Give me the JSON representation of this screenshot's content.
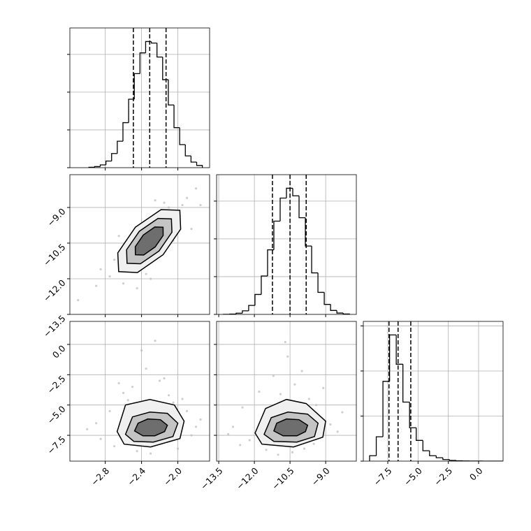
{
  "chart_data": [
    {
      "type": "histogram",
      "color": "#000000",
      "grid": true,
      "bins": [
        -2.98,
        -2.9175,
        -2.855,
        -2.7925,
        -2.73,
        -2.6675,
        -2.605,
        -2.5425,
        -2.48,
        -2.4175,
        -2.355,
        -2.2925,
        -2.23,
        -2.1675,
        -2.105,
        -2.0425,
        -1.98,
        -1.9175,
        -1.855,
        -1.7925,
        -1.73
      ],
      "counts": [
        10,
        29,
        74,
        176,
        374,
        700,
        1192,
        1813,
        2490,
        3040,
        3340,
        3300,
        2930,
        2330,
        1660,
        1060,
        610,
        312,
        148,
        59
      ],
      "quantiles": [
        -2.49,
        -2.31,
        -2.13
      ],
      "xlim": [
        -3.19,
        -1.65
      ],
      "xticks": [
        -2.8,
        -2.4,
        -2.0
      ],
      "ylim": [
        0,
        3700
      ],
      "yticks": [
        0,
        1000,
        2000,
        3000
      ]
    },
    {
      "type": "scatter",
      "color": "#bbbbbb",
      "grid": true,
      "x": [
        -2.9,
        -2.75,
        -2.6,
        -2.5,
        -2.45,
        -2.35,
        -2.2,
        -2.1,
        -2.0,
        -1.9,
        -1.85,
        -1.8,
        -2.7,
        -2.55,
        -2.4,
        -2.15,
        -2.05,
        -1.95,
        -3.1,
        -2.85,
        -2.3,
        -2.25,
        -1.75,
        -2.65
      ],
      "y": [
        -12.3,
        -11.9,
        -12.2,
        -11.0,
        -12.4,
        -11.8,
        -9.6,
        -9.0,
        -9.4,
        -8.6,
        -9.9,
        -8.2,
        -11.2,
        -10.6,
        -9.8,
        -8.8,
        -10.4,
        -8.9,
        -12.9,
        -11.6,
        -12.0,
        -8.7,
        -8.9,
        -10.2
      ],
      "contours": [
        {
          "fill": "#f0f0f0",
          "x": [
            -1.978,
            -1.969,
            -2.163,
            -2.446,
            -2.652,
            -2.662,
            -2.468,
            -2.185
          ],
          "y": [
            -9.12,
            -9.91,
            -10.99,
            -11.74,
            -11.7,
            -10.91,
            -9.83,
            -9.09
          ]
        },
        {
          "fill": "#c4c4c4",
          "x": [
            -2.071,
            -2.065,
            -2.207,
            -2.412,
            -2.56,
            -2.565,
            -2.424,
            -2.219
          ],
          "y": [
            -9.48,
            -10.04,
            -10.83,
            -11.37,
            -11.35,
            -10.78,
            -10.0,
            -9.46
          ]
        },
        {
          "fill": "#6e6e6e",
          "x": [
            -2.163,
            -2.162,
            -2.25,
            -2.377,
            -2.468,
            -2.469,
            -2.381,
            -2.254
          ],
          "y": [
            -9.83,
            -10.18,
            -10.66,
            -11.0,
            -10.99,
            -10.65,
            -10.16,
            -9.82
          ]
        }
      ],
      "xlim": [
        -3.19,
        -1.65
      ],
      "xticks": [
        -2.8,
        -2.4,
        -2.0
      ],
      "ylim": [
        -13.5,
        -7.62
      ],
      "yticks": [
        {
          "value": -9,
          "label": "−9.0"
        },
        {
          "value": -10.5,
          "label": "−10.5"
        },
        {
          "value": -12,
          "label": "−12.0"
        },
        {
          "value": -13.5,
          "label": "−13.5"
        }
      ]
    },
    {
      "type": "histogram",
      "color": "#000000",
      "grid": true,
      "bins": [
        -13.3,
        -13.035,
        -12.77,
        -12.505,
        -12.24,
        -11.975,
        -11.71,
        -11.445,
        -11.18,
        -10.915,
        -10.65,
        -10.385,
        -10.12,
        -9.855,
        -9.59,
        -9.325,
        -9.06,
        -8.795,
        -8.53,
        -8.265,
        -8.0
      ],
      "counts": [
        2,
        9,
        32,
        95,
        238,
        528,
        1018,
        1710,
        2470,
        3080,
        3340,
        3140,
        2560,
        1810,
        1100,
        584,
        265,
        105,
        36,
        11
      ],
      "quantiles": [
        -11.24,
        -10.5,
        -9.82
      ],
      "xlim": [
        -13.59,
        -7.71
      ],
      "xticks": [
        -13.5,
        -12,
        -10.5,
        -9
      ],
      "ylim": [
        0,
        3700
      ],
      "yticks": [
        0,
        1000,
        2000,
        3000
      ]
    },
    {
      "type": "scatter",
      "color": "#bbbbbb",
      "grid": true,
      "x": [
        -2.9,
        -2.75,
        -2.6,
        -2.5,
        -2.45,
        -2.35,
        -2.2,
        -2.1,
        -2.0,
        -1.9,
        -1.85,
        -1.8,
        -2.7,
        -2.55,
        -2.4,
        -2.15,
        -2.05,
        -1.95,
        -3.0,
        -2.85,
        -2.3,
        -2.25,
        -1.75,
        -2.65
      ],
      "y": [
        -6.5,
        -5.5,
        -4.0,
        -3.5,
        -8.8,
        -2.0,
        -3.0,
        -4.2,
        -8.6,
        -5.5,
        -7.5,
        -6.8,
        -8.4,
        -4.6,
        -0.5,
        -2.8,
        -4.8,
        -4.5,
        -7.0,
        -7.8,
        -9.0,
        0.3,
        -6.2,
        -3.2
      ],
      "contours": [
        {
          "fill": "#f0f0f0",
          "x": [
            -1.931,
            -2.038,
            -2.308,
            -2.577,
            -2.669,
            -2.592,
            -2.3,
            -1.977
          ],
          "y": [
            -6.33,
            -5.0,
            -4.54,
            -5.0,
            -7.19,
            -8.23,
            -8.46,
            -7.77
          ]
        },
        {
          "fill": "#c4c4c4",
          "x": [
            -2.0,
            -2.115,
            -2.308,
            -2.5,
            -2.577,
            -2.485,
            -2.269,
            -2.054
          ],
          "y": [
            -6.5,
            -5.69,
            -5.58,
            -5.98,
            -7.42,
            -8.0,
            -8.06,
            -7.6
          ]
        },
        {
          "fill": "#6e6e6e",
          "x": [
            -2.115,
            -2.192,
            -2.331,
            -2.438,
            -2.477,
            -2.385,
            -2.254,
            -2.146
          ],
          "y": [
            -6.67,
            -6.21,
            -6.15,
            -6.5,
            -7.14,
            -7.54,
            -7.54,
            -7.19
          ]
        }
      ],
      "xlim": [
        -3.19,
        -1.65
      ],
      "xticks": [
        {
          "value": -2.8,
          "label": "−2.8"
        },
        {
          "value": -2.4,
          "label": "−2.4"
        },
        {
          "value": -2.0,
          "label": "−2.0"
        }
      ],
      "ylim": [
        -9.63,
        1.9
      ],
      "yticks": [
        {
          "value": 0,
          "label": "0.0"
        },
        {
          "value": -2.5,
          "label": "−2.5"
        },
        {
          "value": -5,
          "label": "−5.0"
        },
        {
          "value": -7.5,
          "label": "−7.5"
        }
      ]
    },
    {
      "type": "scatter",
      "color": "#bbbbbb",
      "grid": true,
      "x": [
        -12.9,
        -12.5,
        -12.2,
        -11.8,
        -11.5,
        -11.2,
        -10.9,
        -10.6,
        -10.3,
        -10.0,
        -9.7,
        -9.4,
        -9.1,
        -8.8,
        -8.5,
        -12.6,
        -11.0,
        -10.4,
        -9.9,
        -13.1,
        -11.6,
        -10.7,
        -9.5,
        -8.3
      ],
      "y": [
        -6.8,
        -5.2,
        -7.9,
        -3.9,
        -8.7,
        -2.6,
        -4.1,
        -1.0,
        -3.3,
        -2.2,
        -4.5,
        -5.0,
        -3.6,
        -6.6,
        -7.2,
        -8.3,
        -9.1,
        -8.9,
        -8.6,
        -7.4,
        -5.9,
        0.2,
        -8.2,
        -5.6
      ],
      "contours": [
        {
          "fill": "#f0f0f0",
          "x": [
            -9.0,
            -9.82,
            -10.65,
            -11.53,
            -11.97,
            -11.68,
            -10.35,
            -9.12
          ],
          "y": [
            -6.33,
            -4.88,
            -4.54,
            -5.29,
            -7.31,
            -8.23,
            -8.46,
            -7.65
          ]
        },
        {
          "fill": "#c4c4c4",
          "x": [
            -9.32,
            -9.76,
            -10.59,
            -11.29,
            -11.59,
            -11.18,
            -10.21,
            -9.47
          ],
          "y": [
            -6.5,
            -5.75,
            -5.58,
            -6.04,
            -7.42,
            -8.0,
            -8.06,
            -7.6
          ]
        },
        {
          "fill": "#6e6e6e",
          "x": [
            -9.76,
            -10.12,
            -10.65,
            -11.06,
            -11.18,
            -10.79,
            -10.21,
            -9.85
          ],
          "y": [
            -6.67,
            -6.21,
            -6.15,
            -6.5,
            -7.14,
            -7.54,
            -7.54,
            -7.19
          ]
        }
      ],
      "xlim": [
        -13.59,
        -7.71
      ],
      "xticks": [
        {
          "value": -13.5,
          "label": "−13.5"
        },
        {
          "value": -12,
          "label": "−12.0"
        },
        {
          "value": -10.5,
          "label": "−10.5"
        },
        {
          "value": -9,
          "label": "−9.0"
        }
      ],
      "ylim": [
        -9.63,
        1.9
      ],
      "yticks": [
        0,
        -2.5,
        -5,
        -7.5
      ]
    },
    {
      "type": "histogram",
      "color": "#000000",
      "grid": true,
      "bins": [
        -9.0,
        -8.45,
        -7.9,
        -7.35,
        -6.8,
        -6.25,
        -5.7,
        -5.15,
        -4.6,
        -4.05,
        -3.5,
        -2.95,
        -2.4,
        -1.85,
        -1.3,
        -0.75,
        -0.2,
        0.35,
        0.9,
        1.45,
        2.0
      ],
      "counts": [
        120,
        540,
        1770,
        2800,
        2150,
        1310,
        740,
        460,
        230,
        120,
        75,
        35,
        15,
        8,
        4,
        2,
        1,
        0,
        0,
        0
      ],
      "quantiles": [
        -7.4,
        -6.65,
        -5.6
      ],
      "xlim": [
        -9.52,
        2.02
      ],
      "xticks": [
        {
          "value": -7.5,
          "label": "−7.5"
        },
        {
          "value": -5,
          "label": "−5.0"
        },
        {
          "value": -2.5,
          "label": "−2.5"
        },
        {
          "value": 0,
          "label": "0.0"
        }
      ],
      "ylim": [
        0,
        3100
      ],
      "yticks": [
        0,
        1000,
        2000,
        3000
      ]
    }
  ]
}
